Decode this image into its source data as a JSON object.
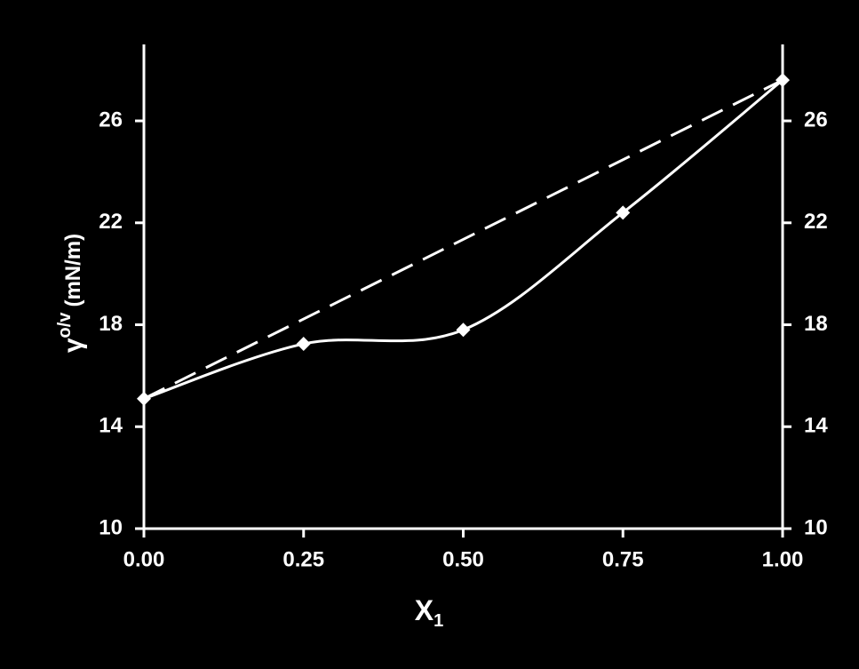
{
  "chart_data": {
    "type": "line",
    "x_label": {
      "text": "X",
      "subscript": "1"
    },
    "y_label": {
      "symbol": "γ",
      "superscript": "o/v",
      "unit": "(mN/m)"
    },
    "series": [
      {
        "color": "#ffffff",
        "style": "solid",
        "smooth": true,
        "marker": "diamond",
        "x": [
          0,
          0.25,
          0.5,
          0.75,
          1
        ],
        "values": [
          15.1,
          17.25,
          17.8,
          22.4,
          27.6
        ]
      },
      {
        "color": "#ffffff",
        "style": "dashed",
        "smooth": false,
        "marker": "none",
        "x": [
          0,
          1
        ],
        "values": [
          15.1,
          27.6
        ]
      }
    ],
    "xlim": [
      0,
      1
    ],
    "xticks": [
      {
        "value": 0,
        "label": "0.00"
      },
      {
        "value": 0.25,
        "label": "0.25"
      },
      {
        "value": 0.5,
        "label": "0.50"
      },
      {
        "value": 0.75,
        "label": "0.75"
      },
      {
        "value": 1,
        "label": "1.00"
      }
    ],
    "ylim": [
      10,
      29
    ],
    "yticks": [
      10,
      14,
      18,
      22,
      26
    ],
    "mirror_y_axis": true,
    "grid": false
  }
}
